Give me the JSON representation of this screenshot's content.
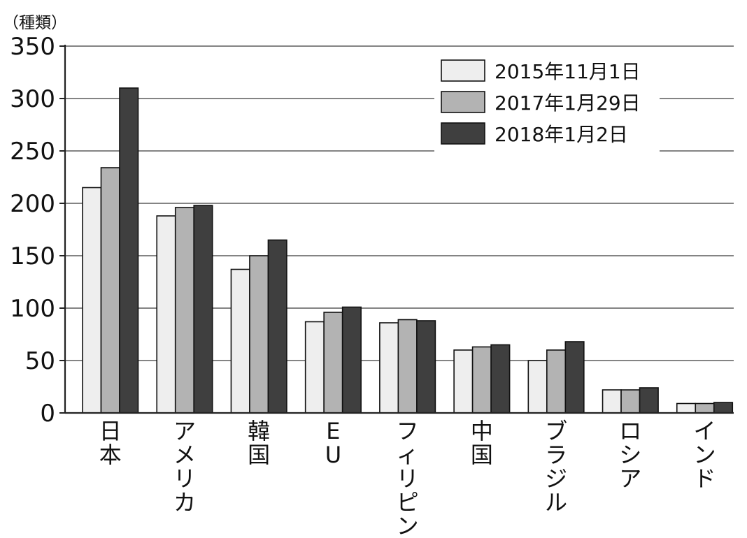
{
  "chart_data": {
    "type": "bar",
    "ylabel": "（種類）",
    "ylim": [
      0,
      350
    ],
    "yticks": [
      0,
      50,
      100,
      150,
      200,
      250,
      300,
      350
    ],
    "grid": true,
    "legend_position": "top-right",
    "categories": [
      "日本",
      "アメリカ",
      "韓国",
      "E U",
      "フィリピン",
      "中国",
      "ブラジル",
      "ロシア",
      "インド"
    ],
    "series": [
      {
        "name": "2015年11月1日",
        "color": "#eeeeee",
        "values": [
          215,
          188,
          137,
          87,
          86,
          60,
          50,
          22,
          9
        ]
      },
      {
        "name": "2017年1月29日",
        "color": "#b3b3b3",
        "values": [
          234,
          196,
          150,
          96,
          89,
          63,
          60,
          22,
          9
        ]
      },
      {
        "name": "2018年1月2日",
        "color": "#3f3f3f",
        "values": [
          310,
          198,
          165,
          101,
          88,
          65,
          68,
          24,
          10
        ]
      }
    ]
  }
}
